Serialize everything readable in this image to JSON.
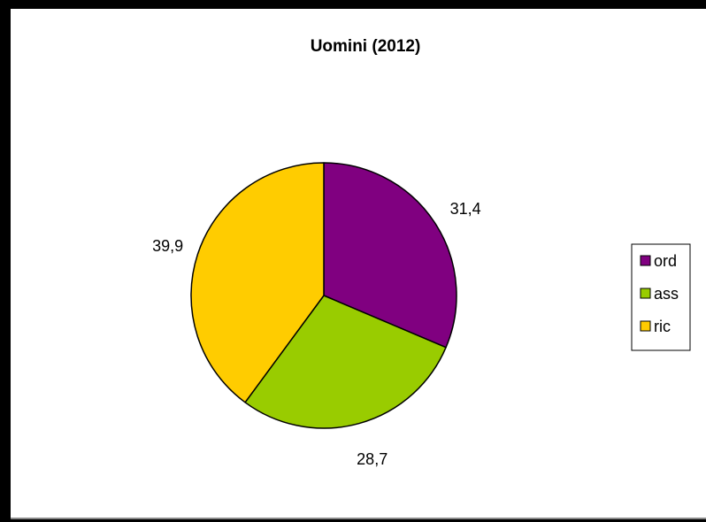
{
  "chart_data": {
    "type": "pie",
    "title": "Uomini (2012)",
    "categories": [
      "ord",
      "ass",
      "ric"
    ],
    "values": [
      31.4,
      28.7,
      39.9
    ],
    "value_labels": [
      "31,4",
      "28,7",
      "39,9"
    ],
    "colors": [
      "#800080",
      "#99cc00",
      "#ffcc00"
    ],
    "legend": {
      "placement": "right",
      "entries": [
        "ord",
        "ass",
        "ric"
      ]
    }
  }
}
